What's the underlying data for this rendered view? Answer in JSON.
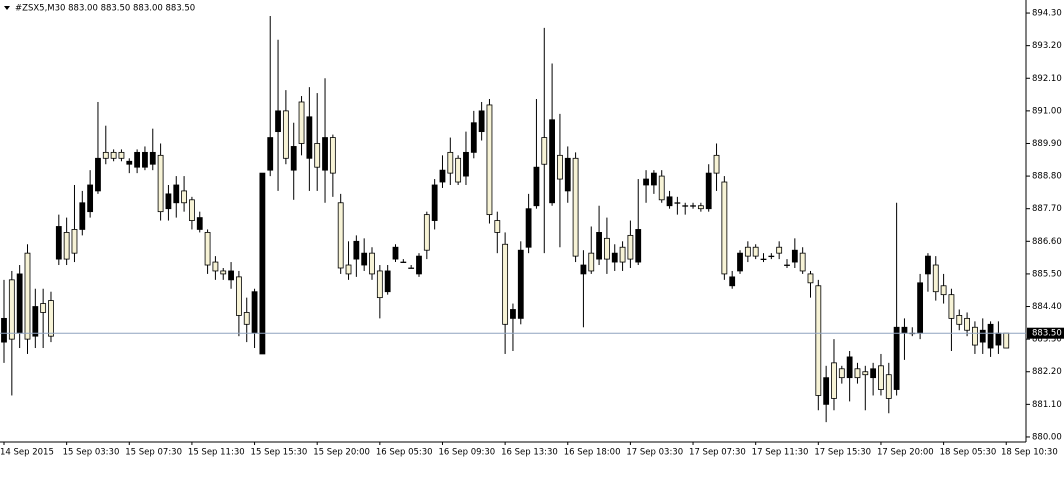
{
  "chart_data": {
    "type": "candlestick",
    "title": "#ZSX5,M30  883.00 883.50 883.00 883.50",
    "up_color": "#f7f3d6",
    "down_color": "#000000",
    "wick_color": "#000000",
    "current_price": {
      "value": 883.5,
      "label": "883.50"
    },
    "ylim": [
      879.83,
      894.74
    ],
    "yticks": [
      {
        "value": 894.3,
        "label": "894.30"
      },
      {
        "value": 893.2,
        "label": "893.20"
      },
      {
        "value": 892.1,
        "label": "892.10"
      },
      {
        "value": 891.0,
        "label": "891.00"
      },
      {
        "value": 889.9,
        "label": "889.90"
      },
      {
        "value": 888.8,
        "label": "888.80"
      },
      {
        "value": 887.7,
        "label": "887.70"
      },
      {
        "value": 886.6,
        "label": "886.60"
      },
      {
        "value": 885.5,
        "label": "885.50"
      },
      {
        "value": 884.4,
        "label": "884.40"
      },
      {
        "value": 883.3,
        "label": "883.30"
      },
      {
        "value": 882.2,
        "label": "882.20"
      },
      {
        "value": 881.1,
        "label": "881.10"
      },
      {
        "value": 880.0,
        "label": "880.00"
      }
    ],
    "categories": [
      "14 Sep 2015",
      null,
      null,
      null,
      null,
      null,
      null,
      null,
      "15 Sep 03:30",
      null,
      null,
      null,
      null,
      null,
      null,
      null,
      "15 Sep 07:30",
      null,
      null,
      null,
      null,
      null,
      null,
      null,
      "15 Sep 11:30",
      null,
      null,
      null,
      null,
      null,
      null,
      null,
      "15 Sep 15:30",
      null,
      null,
      null,
      null,
      null,
      null,
      null,
      "15 Sep 20:00",
      null,
      null,
      null,
      null,
      null,
      null,
      null,
      "16 Sep 05:30",
      null,
      null,
      null,
      null,
      null,
      null,
      null,
      "16 Sep 09:30",
      null,
      null,
      null,
      null,
      null,
      null,
      null,
      "16 Sep 13:30",
      null,
      null,
      null,
      null,
      null,
      null,
      null,
      "16 Sep 18:00",
      null,
      null,
      null,
      null,
      null,
      null,
      null,
      "17 Sep 03:30",
      null,
      null,
      null,
      null,
      null,
      null,
      null,
      "17 Sep 07:30",
      null,
      null,
      null,
      null,
      null,
      null,
      null,
      "17 Sep 11:30",
      null,
      null,
      null,
      null,
      null,
      null,
      null,
      "17 Sep 15:30",
      null,
      null,
      null,
      null,
      null,
      null,
      null,
      "17 Sep 20:00",
      null,
      null,
      null,
      null,
      null,
      null,
      null,
      "18 Sep 05:30",
      null,
      null,
      null,
      null,
      null,
      null,
      null,
      "18 Sep 10:30"
    ],
    "open": [
      884.0,
      883.3,
      885.5,
      883.3,
      884.4,
      884.2,
      883.4,
      887.1,
      886.0,
      886.2,
      887.9,
      888.5,
      889.4,
      889.4,
      889.4,
      889.4,
      889.3,
      889.6,
      889.6,
      889.6,
      887.6,
      888.2,
      888.5,
      887.9,
      887.3,
      887.4,
      885.8,
      885.6,
      885.5,
      885.6,
      884.1,
      883.8,
      884.9,
      888.9,
      890.1,
      891.0,
      889.4,
      889.8,
      889.9,
      890.8,
      889.1,
      890.1,
      888.9,
      885.7,
      885.5,
      886.6,
      886.2,
      885.5,
      884.7,
      885.6,
      886.4,
      885.9,
      885.7,
      886.1,
      886.3,
      888.5,
      889.0,
      888.9,
      888.6,
      889.6,
      890.6,
      891.0,
      887.5,
      886.9,
      883.8,
      884.3,
      886.3,
      887.7,
      889.1,
      889.2,
      890.7,
      888.7,
      889.4,
      886.1,
      885.8,
      885.6,
      886.9,
      886.0,
      886.2,
      885.9,
      886.0,
      887.0,
      888.7,
      888.9,
      888.0,
      888.1,
      887.9,
      887.8,
      887.8,
      887.7,
      888.9,
      888.9,
      885.5,
      885.4,
      886.2,
      886.1,
      886.1,
      886.0,
      886.1,
      886.2,
      885.8,
      886.3,
      885.6,
      885.2,
      881.4,
      882.0,
      881.3,
      882.0,
      882.7,
      882.0,
      882.1,
      882.3,
      881.6,
      881.3,
      883.7,
      883.7,
      883.5,
      885.2,
      886.1,
      884.9,
      884.8,
      884.0,
      883.8,
      883.6,
      883.1,
      883.6,
      883.8,
      883.5,
      883.0
    ],
    "high": [
      885.3,
      885.6,
      885.8,
      886.5,
      885.0,
      885.0,
      884.9,
      887.5,
      887.4,
      888.5,
      888.3,
      889.0,
      891.3,
      890.5,
      889.7,
      889.7,
      889.4,
      889.7,
      889.8,
      890.4,
      889.9,
      888.5,
      888.8,
      888.8,
      888.1,
      887.6,
      887.0,
      886.1,
      885.7,
      885.9,
      885.6,
      884.7,
      885.0,
      888.9,
      894.2,
      893.4,
      891.7,
      890.6,
      891.5,
      891.8,
      891.6,
      892.1,
      890.2,
      888.2,
      886.6,
      886.8,
      886.7,
      886.4,
      885.8,
      885.8,
      886.5,
      886.0,
      885.8,
      886.2,
      887.6,
      888.7,
      889.5,
      890.1,
      889.5,
      890.3,
      891.0,
      891.3,
      891.4,
      887.6,
      886.9,
      884.5,
      886.6,
      888.2,
      891.4,
      893.8,
      892.6,
      890.9,
      889.8,
      889.6,
      886.3,
      887.1,
      887.8,
      887.4,
      886.5,
      886.6,
      887.3,
      888.7,
      889.0,
      889.0,
      889.0,
      888.3,
      888.1,
      887.9,
      887.9,
      887.9,
      889.2,
      889.9,
      888.8,
      885.6,
      886.3,
      886.6,
      886.5,
      886.2,
      886.2,
      886.6,
      886.0,
      886.7,
      886.4,
      885.6,
      885.3,
      882.4,
      883.3,
      882.4,
      882.9,
      882.5,
      882.4,
      882.5,
      882.8,
      882.5,
      887.9,
      884.0,
      883.7,
      885.5,
      886.2,
      886.1,
      885.5,
      885.0,
      884.3,
      884.2,
      883.9,
      884.0,
      883.9,
      883.9,
      883.5
    ],
    "low": [
      882.5,
      881.4,
      883.0,
      882.8,
      883.0,
      883.0,
      883.2,
      885.8,
      885.8,
      885.9,
      886.8,
      887.4,
      888.2,
      889.2,
      889.3,
      889.3,
      888.9,
      888.9,
      889.0,
      889.0,
      887.3,
      887.3,
      887.4,
      887.6,
      887.0,
      886.9,
      885.5,
      885.3,
      885.3,
      885.0,
      883.4,
      883.2,
      883.0,
      882.8,
      888.8,
      888.3,
      889.2,
      888.0,
      889.5,
      888.3,
      888.3,
      887.9,
      888.1,
      885.5,
      885.3,
      885.4,
      885.6,
      885.3,
      884.0,
      884.8,
      885.9,
      885.9,
      885.7,
      885.4,
      886.0,
      887.0,
      888.4,
      888.5,
      888.5,
      888.5,
      889.4,
      890.0,
      887.2,
      886.2,
      882.8,
      882.9,
      883.8,
      886.2,
      887.7,
      886.2,
      887.8,
      886.4,
      887.9,
      885.9,
      883.7,
      885.5,
      885.8,
      885.5,
      885.6,
      885.6,
      885.7,
      885.8,
      887.9,
      888.2,
      887.9,
      887.7,
      887.5,
      887.5,
      887.7,
      887.6,
      887.6,
      888.3,
      885.3,
      885.0,
      885.5,
      885.9,
      886.0,
      885.9,
      886.0,
      886.0,
      885.7,
      885.7,
      885.5,
      884.7,
      880.9,
      880.5,
      880.9,
      881.8,
      881.2,
      881.8,
      880.9,
      881.4,
      881.4,
      880.8,
      881.4,
      882.6,
      883.4,
      883.3,
      884.9,
      884.6,
      884.5,
      882.9,
      883.6,
      883.4,
      882.8,
      882.8,
      882.7,
      882.8,
      883.0
    ],
    "close": [
      883.2,
      885.3,
      883.5,
      886.2,
      883.4,
      884.5,
      884.6,
      886.0,
      886.9,
      887.0,
      887.0,
      887.6,
      888.3,
      889.6,
      889.6,
      889.6,
      889.2,
      889.1,
      889.1,
      889.2,
      889.5,
      887.7,
      887.9,
      888.3,
      888.0,
      887.0,
      886.9,
      885.9,
      885.6,
      885.3,
      885.4,
      884.2,
      883.5,
      882.8,
      889.0,
      890.3,
      891.0,
      889.0,
      891.3,
      889.4,
      889.9,
      889.0,
      890.1,
      887.9,
      885.8,
      886.0,
      885.8,
      886.2,
      885.6,
      884.9,
      886.0,
      885.9,
      885.7,
      885.5,
      887.5,
      887.3,
      888.6,
      889.6,
      889.4,
      888.8,
      889.6,
      890.3,
      891.2,
      887.3,
      886.5,
      884.0,
      884.0,
      886.4,
      887.8,
      890.1,
      887.9,
      889.5,
      888.3,
      889.4,
      885.5,
      886.2,
      886.0,
      886.7,
      885.9,
      886.4,
      886.8,
      885.9,
      888.5,
      888.5,
      888.8,
      887.8,
      887.9,
      887.8,
      887.8,
      887.8,
      887.7,
      889.5,
      888.6,
      885.1,
      885.6,
      886.4,
      886.4,
      886.0,
      886.1,
      886.4,
      885.8,
      885.9,
      886.2,
      885.5,
      885.1,
      881.1,
      882.5,
      882.3,
      882.0,
      882.3,
      882.2,
      882.0,
      882.4,
      882.1,
      881.6,
      883.5,
      883.5,
      883.5,
      885.5,
      885.8,
      885.1,
      884.8,
      884.1,
      884.0,
      883.7,
      883.2,
      883.0,
      883.1,
      883.5
    ]
  }
}
